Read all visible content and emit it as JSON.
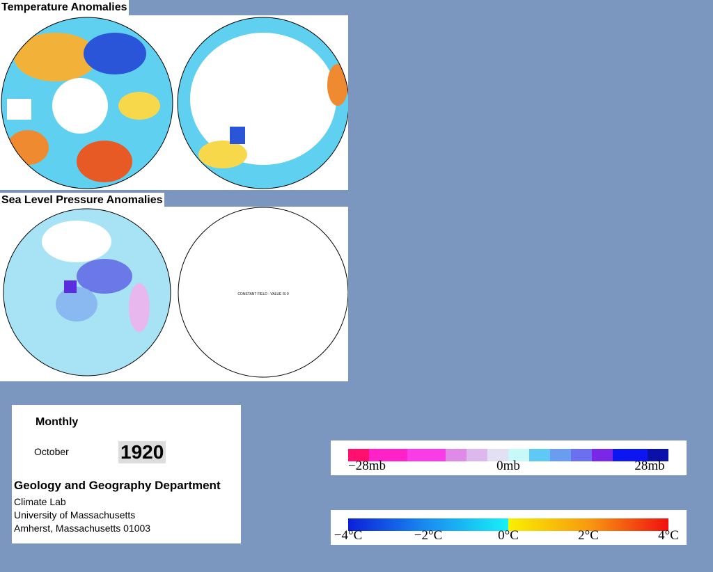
{
  "sections": {
    "temperature": {
      "title": "Temperature Anomalies"
    },
    "pressure": {
      "title": "Sea Level Pressure Anomalies",
      "note": "CONSTANT FIELD - VALUE IS 0"
    }
  },
  "info": {
    "period": "Monthly",
    "month": "October",
    "year": "1920",
    "department": "Geology and Geography Department",
    "lines": [
      "Climate Lab",
      "University of Massachusetts",
      "Amherst, Massachusetts 01003"
    ]
  },
  "legends": {
    "pressure": [
      "−28mb",
      "0mb",
      "28mb"
    ],
    "temperature": [
      "−4°C",
      "−2°C",
      "0°C",
      "2°C",
      "4°C"
    ]
  }
}
